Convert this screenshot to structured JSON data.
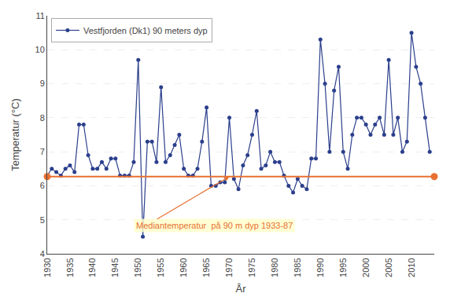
{
  "chart_data": {
    "type": "line",
    "xlabel": "År",
    "ylabel": "Temperatur (°C)",
    "x": [
      1930,
      1931,
      1932,
      1933,
      1934,
      1935,
      1936,
      1937,
      1938,
      1939,
      1940,
      1941,
      1942,
      1943,
      1944,
      1945,
      1946,
      1947,
      1948,
      1949,
      1950,
      1951,
      1952,
      1953,
      1954,
      1955,
      1956,
      1957,
      1958,
      1959,
      1960,
      1961,
      1962,
      1963,
      1964,
      1965,
      1966,
      1967,
      1968,
      1969,
      1970,
      1971,
      1972,
      1973,
      1974,
      1975,
      1976,
      1977,
      1978,
      1979,
      1980,
      1981,
      1982,
      1983,
      1984,
      1985,
      1986,
      1987,
      1988,
      1989,
      1990,
      1991,
      1992,
      1993,
      1994,
      1995,
      1996,
      1997,
      1998,
      1999,
      2000,
      2001,
      2002,
      2003,
      2004,
      2005,
      2006,
      2007,
      2008,
      2009,
      2010,
      2011,
      2012,
      2013,
      2014
    ],
    "series": [
      {
        "name": "Vestfjorden (Dk1) 90 meters dyp",
        "color": "#2b3f8c",
        "marker": "circle",
        "values": [
          6.3,
          6.5,
          6.4,
          6.3,
          6.5,
          6.6,
          6.4,
          7.8,
          7.8,
          6.9,
          6.5,
          6.5,
          6.7,
          6.5,
          6.8,
          6.8,
          6.3,
          6.3,
          6.3,
          6.7,
          9.7,
          4.5,
          7.3,
          7.3,
          6.7,
          8.9,
          6.7,
          6.9,
          7.2,
          7.5,
          6.5,
          6.3,
          6.3,
          6.5,
          7.3,
          8.3,
          6.0,
          6.0,
          6.1,
          6.1,
          8.0,
          6.2,
          5.9,
          6.6,
          6.9,
          7.5,
          8.2,
          6.5,
          6.6,
          7.0,
          6.7,
          6.7,
          6.3,
          6.0,
          5.8,
          6.2,
          6.0,
          5.9,
          6.8,
          6.8,
          10.3,
          9.0,
          7.0,
          8.8,
          9.5,
          7.0,
          6.5,
          7.5,
          8.0,
          8.0,
          7.8,
          7.5,
          7.8,
          8.0,
          7.5,
          9.7,
          7.5,
          8.0,
          7.0,
          7.3,
          10.5,
          9.5,
          9.0,
          8.0,
          7.0
        ]
      }
    ],
    "reference_line": {
      "y": 6.27,
      "color": "#e87030"
    },
    "annotations": [
      {
        "text": "Mediantemperatur  på 90 m dyp 1933-87",
        "x": 1970,
        "y": 6.27,
        "text_x": 1949,
        "text_y": 4.62,
        "color": "#e87030"
      }
    ],
    "xlim": [
      1930,
      2015
    ],
    "xticks": [
      1930,
      1935,
      1940,
      1945,
      1950,
      1955,
      1960,
      1965,
      1970,
      1975,
      1980,
      1985,
      1990,
      1995,
      2000,
      2005,
      2010
    ],
    "ylim": [
      4,
      11
    ],
    "yticks": [
      4,
      5,
      6,
      7,
      8,
      9,
      10,
      11
    ],
    "grid": "y",
    "legend": "upper left"
  }
}
